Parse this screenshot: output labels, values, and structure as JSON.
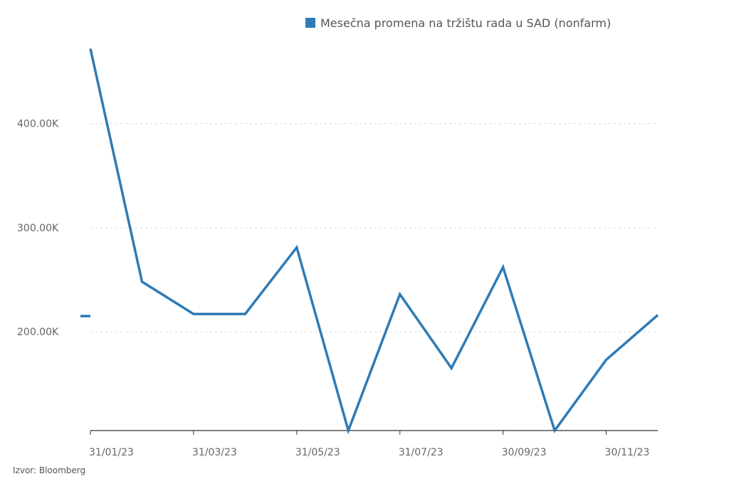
{
  "chart_data": {
    "type": "line",
    "title": "",
    "xlabel": "",
    "ylabel": "",
    "legend_position": "top-right",
    "grid": "horizontal-dashed",
    "ylim": [
      105000,
      475000
    ],
    "yticks": [
      200000,
      300000,
      400000
    ],
    "ytick_labels": [
      "200.00K",
      "300.00K",
      "400.00K"
    ],
    "x": [
      "31/01/23",
      "28/02/23",
      "31/03/23",
      "30/04/23",
      "31/05/23",
      "30/06/23",
      "31/07/23",
      "31/08/23",
      "30/09/23",
      "31/10/23",
      "30/11/23",
      "31/12/23"
    ],
    "xtick_labels": [
      "31/01/23",
      "31/03/23",
      "31/05/23",
      "31/07/23",
      "30/09/23",
      "30/11/23"
    ],
    "series": [
      {
        "name": "Mesečna promena na tržištu rada u SAD (nonfarm)",
        "color": "#2e7bb6",
        "values": [
          472000,
          248000,
          217000,
          217000,
          281000,
          105000,
          236000,
          165000,
          262000,
          105000,
          173000,
          216000
        ]
      }
    ],
    "marker": {
      "value": 215000
    }
  },
  "source": "Izvor: Bloomberg"
}
